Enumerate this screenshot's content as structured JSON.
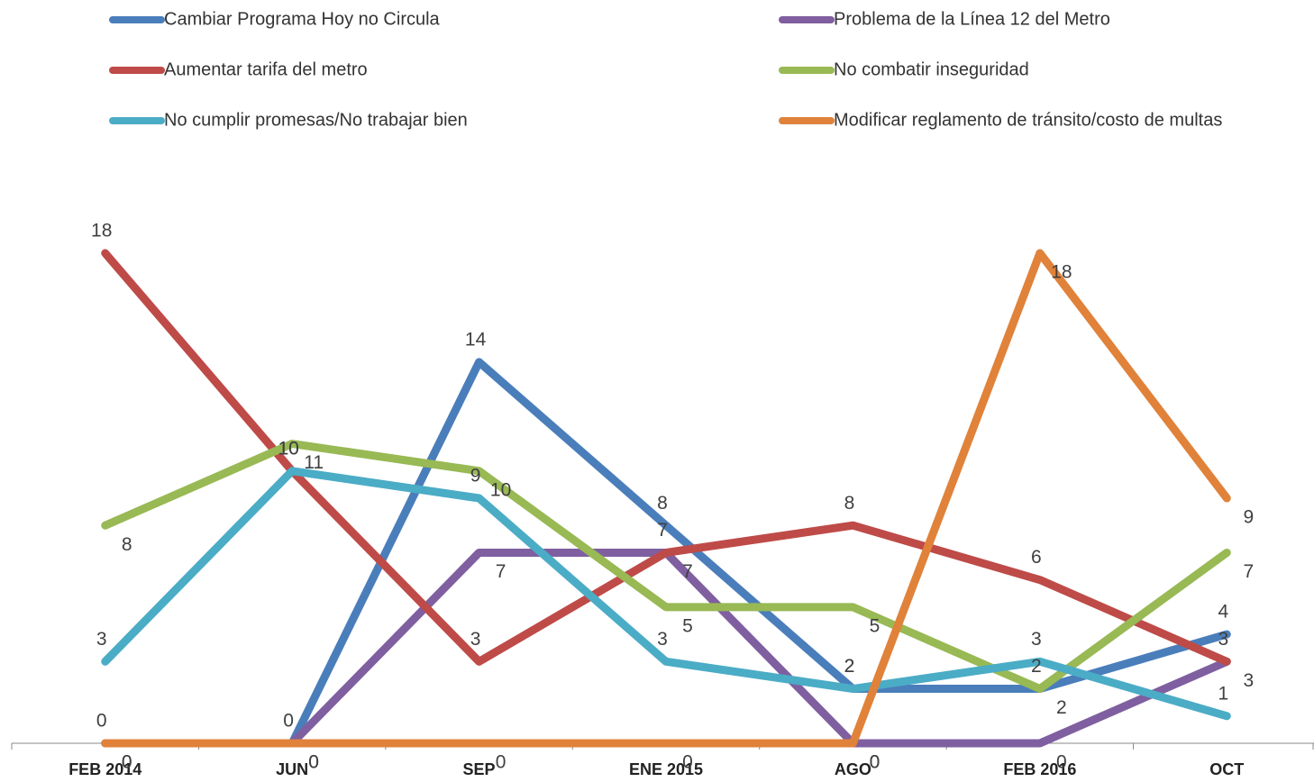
{
  "chart_data": {
    "type": "line",
    "categories": [
      "FEB 2014",
      "JUN",
      "SEP",
      "ENE 2015",
      "AGO",
      "FEB 2016",
      "OCT"
    ],
    "series": [
      {
        "name": "Cambiar Programa Hoy no Circula",
        "color": "#4a7ebb",
        "values": [
          0,
          0,
          14,
          8,
          2,
          2,
          4
        ]
      },
      {
        "name": "Problema de la Línea 12 del Metro",
        "color": "#7f5fa0",
        "values": [
          0,
          0,
          7,
          7,
          0,
          0,
          3
        ]
      },
      {
        "name": "Aumentar tarifa del metro",
        "color": "#be4b48",
        "values": [
          18,
          10,
          3,
          7,
          8,
          6,
          3
        ]
      },
      {
        "name": "No combatir inseguridad",
        "color": "#98b954",
        "values": [
          8,
          11,
          10,
          5,
          5,
          2,
          7
        ]
      },
      {
        "name": "No cumplir promesas/No trabajar bien",
        "color": "#4bacc6",
        "values": [
          3,
          10,
          9,
          3,
          2,
          3,
          1
        ]
      },
      {
        "name": "Modificar reglamento de tránsito/costo de multas",
        "color": "#e0823a",
        "values": [
          0,
          0,
          0,
          0,
          0,
          18,
          9
        ]
      }
    ],
    "ylim": [
      0,
      18
    ],
    "legend": "top"
  }
}
